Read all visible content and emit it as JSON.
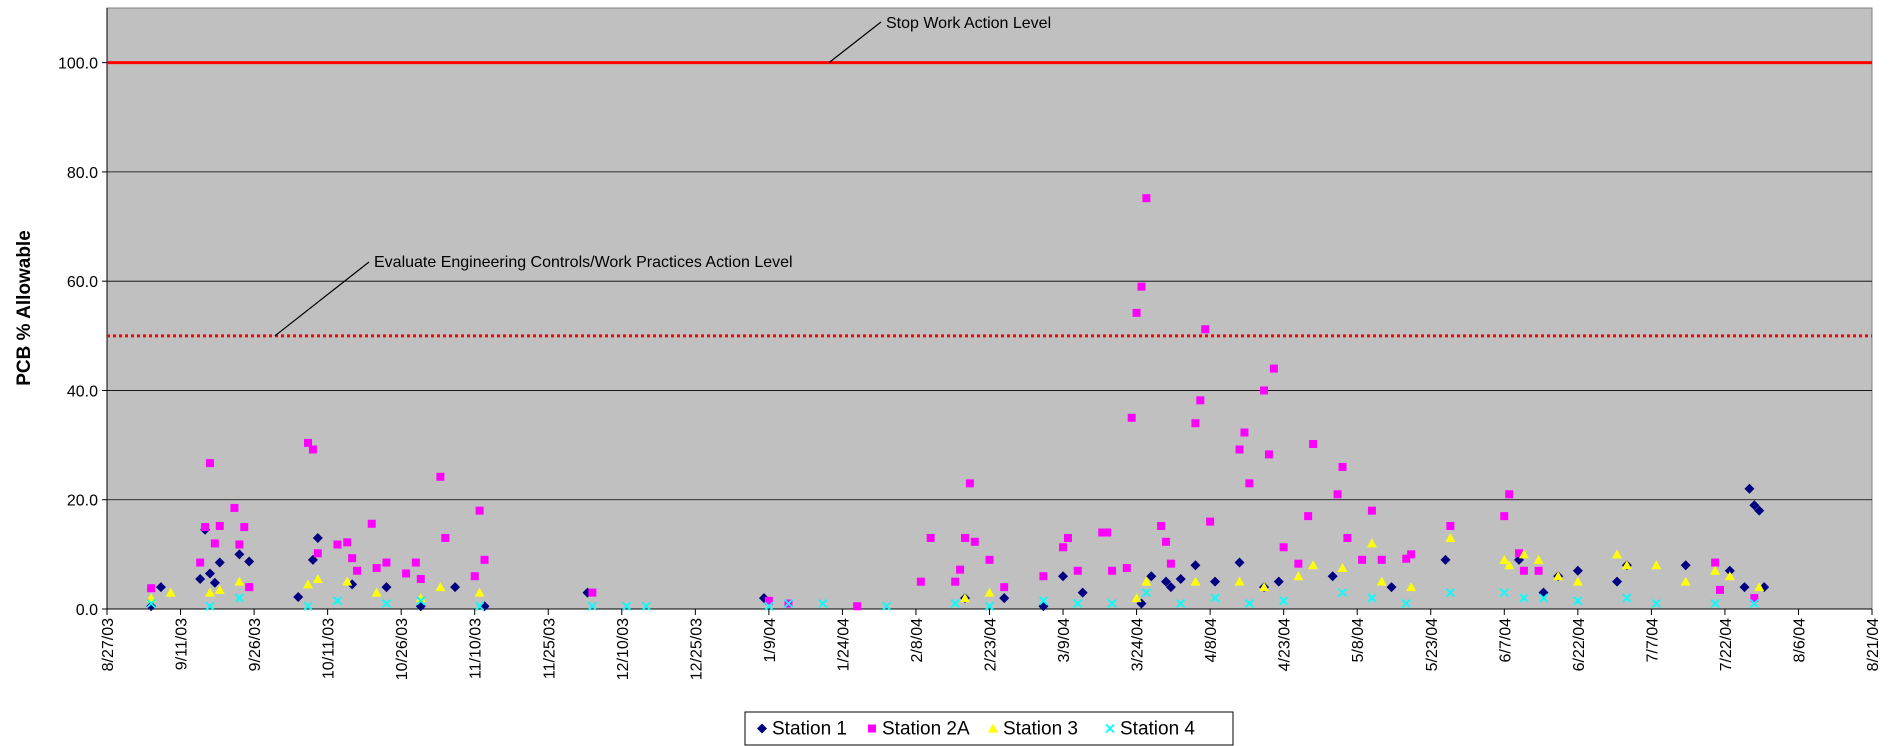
{
  "chart_data": {
    "type": "scatter",
    "y_label": "PCB % Allowable",
    "ylim": [
      0,
      110
    ],
    "yticks": [
      {
        "value": 0,
        "label": "0.0"
      },
      {
        "value": 20,
        "label": "20.0"
      },
      {
        "value": 40,
        "label": "40.0"
      },
      {
        "value": 60,
        "label": "60.0"
      },
      {
        "value": 80,
        "label": "80.0"
      },
      {
        "value": 100,
        "label": "100.0"
      }
    ],
    "xlim": [
      "2003-08-27",
      "2004-08-21"
    ],
    "xticks": [
      {
        "value": "2003-08-27",
        "label": "8/27/03"
      },
      {
        "value": "2003-09-11",
        "label": "9/11/03"
      },
      {
        "value": "2003-09-26",
        "label": "9/26/03"
      },
      {
        "value": "2003-10-11",
        "label": "10/11/03"
      },
      {
        "value": "2003-10-26",
        "label": "10/26/03"
      },
      {
        "value": "2003-11-10",
        "label": "11/10/03"
      },
      {
        "value": "2003-11-25",
        "label": "11/25/03"
      },
      {
        "value": "2003-12-10",
        "label": "12/10/03"
      },
      {
        "value": "2003-12-25",
        "label": "12/25/03"
      },
      {
        "value": "2004-01-09",
        "label": "1/9/04"
      },
      {
        "value": "2004-01-24",
        "label": "1/24/04"
      },
      {
        "value": "2004-02-08",
        "label": "2/8/04"
      },
      {
        "value": "2004-02-23",
        "label": "2/23/04"
      },
      {
        "value": "2004-03-09",
        "label": "3/9/04"
      },
      {
        "value": "2004-03-24",
        "label": "3/24/04"
      },
      {
        "value": "2004-04-08",
        "label": "4/8/04"
      },
      {
        "value": "2004-04-23",
        "label": "4/23/04"
      },
      {
        "value": "2004-05-08",
        "label": "5/8/04"
      },
      {
        "value": "2004-05-23",
        "label": "5/23/04"
      },
      {
        "value": "2004-06-07",
        "label": "6/7/04"
      },
      {
        "value": "2004-06-22",
        "label": "6/22/04"
      },
      {
        "value": "2004-07-07",
        "label": "7/7/04"
      },
      {
        "value": "2004-07-22",
        "label": "7/22/04"
      },
      {
        "value": "2004-08-06",
        "label": "8/6/04"
      },
      {
        "value": "2004-08-21",
        "label": "8/21/04"
      }
    ],
    "grid": true,
    "legend": "bottom",
    "reference_lines": [
      {
        "value": 100,
        "label": "Stop Work Action Level",
        "color": "#ff0000",
        "style": "solid"
      },
      {
        "value": 50,
        "label": "Evaluate Engineering Controls/Work Practices Action Level",
        "color": "#ff0000",
        "style": "dotted"
      }
    ],
    "series": [
      {
        "name": "Station 1",
        "color": "#000080",
        "marker": "diamond",
        "x": [
          "2003-09-05",
          "2003-09-07",
          "2003-09-15",
          "2003-09-16",
          "2003-09-17",
          "2003-09-18",
          "2003-09-19",
          "2003-09-23",
          "2003-09-25",
          "2003-10-05",
          "2003-10-08",
          "2003-10-09",
          "2003-10-16",
          "2003-10-23",
          "2003-10-30",
          "2003-11-06",
          "2003-11-12",
          "2003-12-03",
          "2004-01-08",
          "2004-02-18",
          "2004-02-26",
          "2004-03-05",
          "2004-03-09",
          "2004-03-13",
          "2004-03-25",
          "2004-03-27",
          "2004-03-30",
          "2004-03-31",
          "2004-04-02",
          "2004-04-05",
          "2004-04-09",
          "2004-04-14",
          "2004-04-19",
          "2004-04-22",
          "2004-05-03",
          "2004-05-15",
          "2004-05-26",
          "2004-06-10",
          "2004-06-15",
          "2004-06-18",
          "2004-06-22",
          "2004-06-30",
          "2004-07-02",
          "2004-07-14",
          "2004-07-23",
          "2004-07-26",
          "2004-07-27",
          "2004-07-28",
          "2004-07-29",
          "2004-07-30"
        ],
        "values": [
          0.5,
          4,
          5.5,
          14.5,
          6.5,
          4.8,
          8.5,
          10,
          8.7,
          2.2,
          9,
          13,
          4.5,
          4,
          0.5,
          4,
          0.5,
          3,
          2,
          2,
          2,
          0.5,
          6,
          3,
          1,
          6,
          5,
          4,
          5.5,
          8,
          5,
          8.5,
          4,
          5,
          6,
          4,
          9,
          9,
          3,
          6,
          7,
          5,
          8,
          8,
          7,
          4,
          22,
          19,
          18,
          4
        ]
      },
      {
        "name": "Station 2A",
        "color": "#ff00ff",
        "marker": "square",
        "x": [
          "2003-09-05",
          "2003-09-15",
          "2003-09-16",
          "2003-09-17",
          "2003-09-18",
          "2003-09-19",
          "2003-09-22",
          "2003-09-23",
          "2003-09-24",
          "2003-09-25",
          "2003-10-07",
          "2003-10-08",
          "2003-10-09",
          "2003-10-13",
          "2003-10-15",
          "2003-10-16",
          "2003-10-17",
          "2003-10-20",
          "2003-10-21",
          "2003-10-23",
          "2003-10-27",
          "2003-10-29",
          "2003-10-30",
          "2003-11-03",
          "2003-11-04",
          "2003-11-10",
          "2003-11-11",
          "2003-11-12",
          "2003-12-04",
          "2004-01-09",
          "2004-01-13",
          "2004-01-27",
          "2004-02-09",
          "2004-02-11",
          "2004-02-16",
          "2004-02-17",
          "2004-02-18",
          "2004-02-19",
          "2004-02-20",
          "2004-02-23",
          "2004-02-26",
          "2004-03-05",
          "2004-03-09",
          "2004-03-10",
          "2004-03-12",
          "2004-03-17",
          "2004-03-18",
          "2004-03-19",
          "2004-03-22",
          "2004-03-23",
          "2004-03-24",
          "2004-03-25",
          "2004-03-26",
          "2004-03-29",
          "2004-03-30",
          "2004-03-31",
          "2004-04-05",
          "2004-04-06",
          "2004-04-07",
          "2004-04-08",
          "2004-04-14",
          "2004-04-15",
          "2004-04-16",
          "2004-04-19",
          "2004-04-20",
          "2004-04-21",
          "2004-04-23",
          "2004-04-26",
          "2004-04-28",
          "2004-04-29",
          "2004-05-04",
          "2004-05-05",
          "2004-05-06",
          "2004-05-09",
          "2004-05-11",
          "2004-05-13",
          "2004-05-18",
          "2004-05-19",
          "2004-05-27",
          "2004-06-07",
          "2004-06-08",
          "2004-06-10",
          "2004-06-11",
          "2004-06-14",
          "2004-07-20",
          "2004-07-21",
          "2004-07-28"
        ],
        "values": [
          3.8,
          8.5,
          15,
          26.7,
          12,
          15.2,
          18.5,
          11.8,
          15,
          4,
          30.4,
          29.2,
          10.2,
          11.8,
          12.2,
          9.3,
          7,
          15.6,
          7.5,
          8.5,
          6.5,
          8.5,
          5.5,
          24.2,
          13,
          6,
          18,
          9,
          3,
          1.5,
          1,
          0.5,
          5,
          13,
          5,
          7.2,
          13,
          23,
          12.3,
          9,
          4,
          6,
          11.3,
          13,
          7,
          14,
          14,
          7,
          7.5,
          35,
          54.2,
          59,
          75.2,
          15.2,
          12.3,
          8.3,
          34,
          38.2,
          51.2,
          16,
          29.2,
          32.3,
          23,
          40,
          28.3,
          44,
          11.3,
          8.3,
          17,
          30.2,
          21,
          26,
          13,
          9,
          18,
          9,
          9.2,
          10,
          15.2,
          17,
          21,
          10.2,
          7,
          7,
          8.5,
          3.5,
          2
        ]
      },
      {
        "name": "Station 3",
        "color": "#ffff00",
        "marker": "triangle",
        "x": [
          "2003-09-05",
          "2003-09-09",
          "2003-09-17",
          "2003-09-19",
          "2003-09-23",
          "2003-10-07",
          "2003-10-09",
          "2003-10-15",
          "2003-10-21",
          "2003-10-30",
          "2003-11-03",
          "2003-11-11",
          "2004-02-18",
          "2004-02-23",
          "2004-03-24",
          "2004-03-26",
          "2004-04-05",
          "2004-04-14",
          "2004-04-19",
          "2004-04-26",
          "2004-04-29",
          "2004-05-05",
          "2004-05-11",
          "2004-05-13",
          "2004-05-19",
          "2004-05-27",
          "2004-06-07",
          "2004-06-08",
          "2004-06-11",
          "2004-06-14",
          "2004-06-18",
          "2004-06-22",
          "2004-06-30",
          "2004-07-02",
          "2004-07-08",
          "2004-07-14",
          "2004-07-20",
          "2004-07-23",
          "2004-07-29"
        ],
        "values": [
          2,
          3,
          3,
          3.5,
          5,
          4.5,
          5.5,
          5,
          3,
          2,
          4,
          3,
          2,
          3,
          2,
          5,
          5,
          5,
          4,
          6,
          8,
          7.5,
          12,
          5,
          4,
          13,
          9,
          8,
          10,
          9,
          6,
          5,
          10,
          8,
          8,
          5,
          7,
          6,
          4
        ]
      },
      {
        "name": "Station 4",
        "color": "#00ffff",
        "marker": "x",
        "x": [
          "2003-09-05",
          "2003-09-17",
          "2003-09-23",
          "2003-10-07",
          "2003-10-13",
          "2003-10-23",
          "2003-10-30",
          "2003-11-11",
          "2003-12-04",
          "2003-12-11",
          "2003-12-15",
          "2004-01-09",
          "2004-01-13",
          "2004-01-20",
          "2004-02-02",
          "2004-02-16",
          "2004-02-23",
          "2004-03-05",
          "2004-03-12",
          "2004-03-19",
          "2004-03-26",
          "2004-04-02",
          "2004-04-09",
          "2004-04-16",
          "2004-04-23",
          "2004-05-05",
          "2004-05-11",
          "2004-05-18",
          "2004-05-27",
          "2004-06-07",
          "2004-06-11",
          "2004-06-15",
          "2004-06-22",
          "2004-07-02",
          "2004-07-08",
          "2004-07-20",
          "2004-07-28"
        ],
        "values": [
          1,
          0.5,
          2,
          0.5,
          1.5,
          1,
          1.5,
          0.5,
          0.5,
          0.5,
          0.5,
          0.5,
          1,
          1,
          0.5,
          1,
          0.5,
          1.5,
          1,
          1,
          3,
          1,
          2,
          1,
          1.5,
          3,
          2,
          1,
          3,
          3,
          2,
          2,
          1.5,
          2,
          1,
          1,
          1
        ]
      }
    ]
  }
}
